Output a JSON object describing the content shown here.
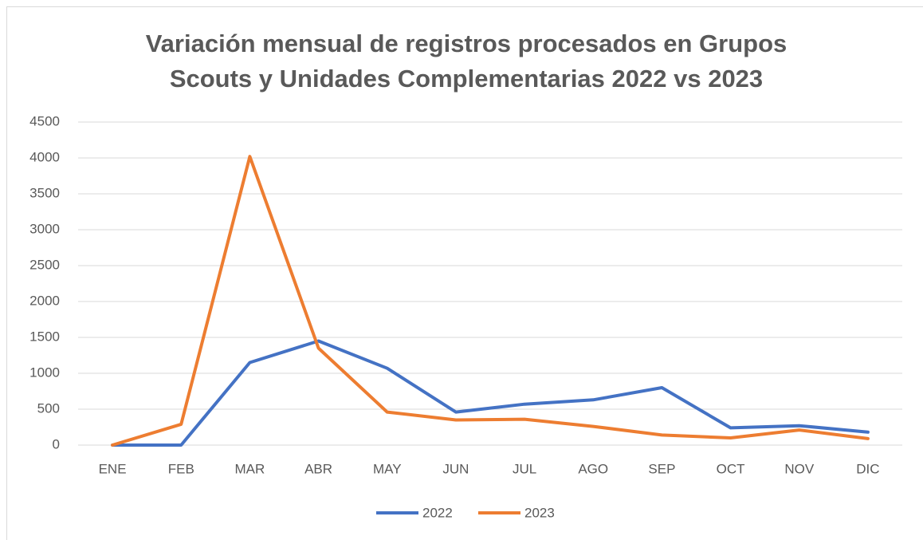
{
  "chart_data": {
    "type": "line",
    "title": [
      "Variación mensual de registros procesados en Grupos",
      "Scouts y Unidades Complementarias 2022 vs 2023"
    ],
    "categories": [
      "ENE",
      "FEB",
      "MAR",
      "ABR",
      "MAY",
      "JUN",
      "JUL",
      "AGO",
      "SEP",
      "OCT",
      "NOV",
      "DIC"
    ],
    "series": [
      {
        "name": "2022",
        "color": "#4472c4",
        "values": [
          0,
          0,
          1150,
          1450,
          1070,
          460,
          570,
          630,
          800,
          240,
          270,
          180
        ]
      },
      {
        "name": "2023",
        "color": "#ed7d31",
        "values": [
          0,
          290,
          4020,
          1350,
          460,
          350,
          360,
          260,
          140,
          100,
          210,
          90
        ]
      }
    ],
    "ylim": [
      0,
      4500
    ],
    "yticks": [
      0,
      500,
      1000,
      1500,
      2000,
      2500,
      3000,
      3500,
      4000,
      4500
    ],
    "grid": true,
    "legend": "bottom"
  }
}
